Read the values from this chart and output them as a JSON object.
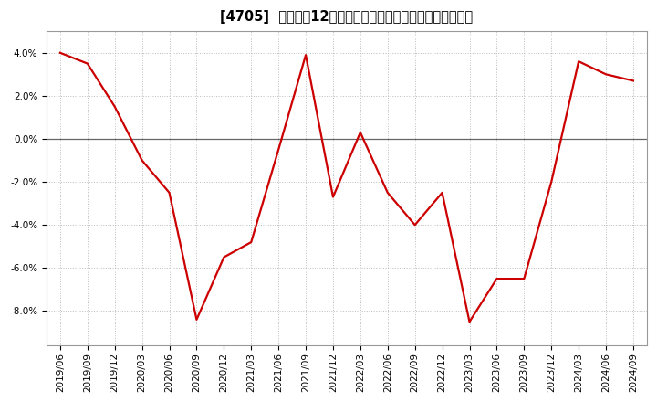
{
  "title": "[4705]  売上高の12か月移動合計の対前年同期増減率の推移",
  "line_color": "#cc0000",
  "background_color": "#ffffff",
  "grid_color": "#bbbbbb",
  "zero_line_color": "#666666",
  "dates": [
    "2019/06",
    "2019/09",
    "2019/12",
    "2020/03",
    "2020/06",
    "2020/09",
    "2020/12",
    "2021/03",
    "2021/06",
    "2021/09",
    "2021/12",
    "2022/03",
    "2022/06",
    "2022/09",
    "2022/12",
    "2023/03",
    "2023/06",
    "2023/09",
    "2023/12",
    "2024/03",
    "2024/06",
    "2024/09"
  ],
  "values": [
    0.04,
    0.035,
    0.015,
    -0.01,
    -0.025,
    -0.084,
    -0.055,
    -0.048,
    -0.005,
    0.039,
    -0.027,
    0.003,
    -0.025,
    -0.04,
    -0.025,
    -0.085,
    -0.065,
    -0.065,
    -0.02,
    0.036,
    0.03,
    0.027
  ],
  "yticks": [
    -0.08,
    -0.06,
    -0.04,
    -0.02,
    0.0,
    0.02,
    0.04
  ],
  "ylim": [
    -0.096,
    0.05
  ],
  "title_fontsize": 10.5,
  "tick_fontsize": 7.5,
  "line_width": 1.6
}
